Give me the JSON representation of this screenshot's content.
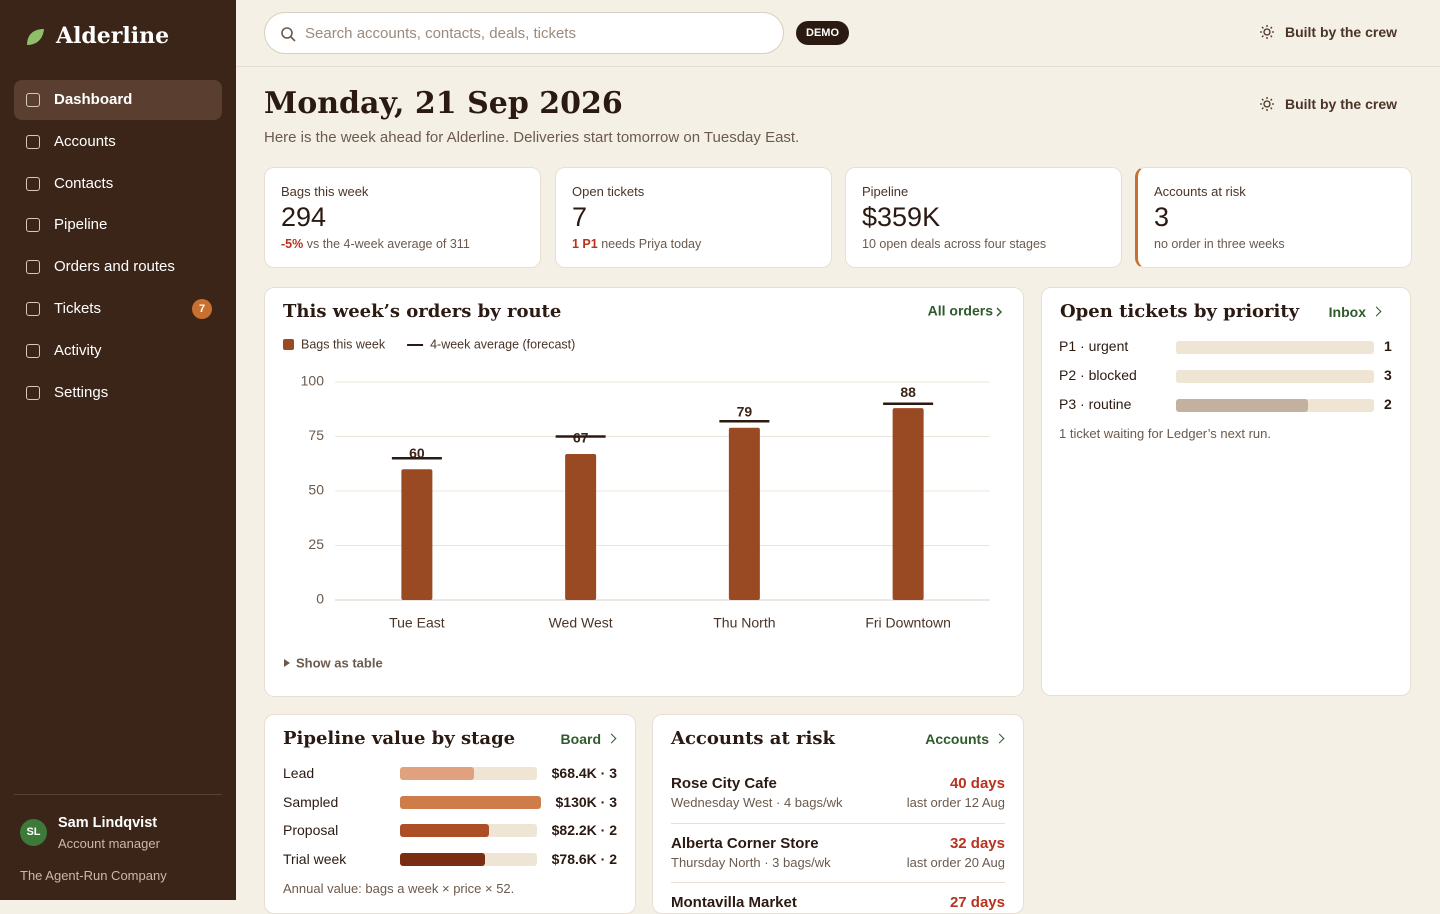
{
  "sidebar": {
    "brand": "Alderline",
    "nav": [
      {
        "label": "Dashboard"
      },
      {
        "label": "Accounts"
      },
      {
        "label": "Contacts"
      },
      {
        "label": "Pipeline"
      },
      {
        "label": "Orders and routes"
      },
      {
        "label": "Tickets",
        "badge": "7"
      },
      {
        "label": "Activity"
      },
      {
        "label": "Settings"
      }
    ],
    "user": {
      "initials": "SL",
      "name": "Sam Lindqvist",
      "role": "Account manager"
    },
    "company": "The Agent-Run Company"
  },
  "topbar": {
    "search_placeholder": "Search accounts, contacts, deals, tickets",
    "badge": "DEMO",
    "credit": "Built by the crew"
  },
  "header": {
    "title": "Monday, 21 Sep 2026",
    "subtitle": "Here is the week ahead for Alderline. Deliveries start tomorrow on Tuesday East.",
    "credit": "Built by the crew"
  },
  "kpis": [
    {
      "label": "Bags this week",
      "value": "294",
      "highlight": "-5%",
      "note": "vs the 4-week average of 311"
    },
    {
      "label": "Open tickets",
      "value": "7",
      "highlight": "1 P1",
      "note": "needs Priya today"
    },
    {
      "label": "Pipeline",
      "value": "$359K",
      "note": "10 open deals across four stages"
    },
    {
      "label": "Accounts at risk",
      "value": "3",
      "note": "no order in three weeks"
    }
  ],
  "chart_data": {
    "type": "bar",
    "title": "This week’s orders by route",
    "link": "All orders",
    "categories": [
      "Tue East",
      "Wed West",
      "Thu North",
      "Fri Downtown"
    ],
    "series": [
      {
        "name": "Bags this week",
        "color": "#9a4a22",
        "values": [
          60,
          67,
          79,
          88
        ]
      },
      {
        "name": "4-week average (forecast)",
        "color": "#2b1a12",
        "values": [
          65,
          75,
          82,
          90
        ]
      }
    ],
    "ylim": [
      0,
      100
    ],
    "yticks": [
      0,
      25,
      50,
      75,
      100
    ],
    "grid": true,
    "toggle": "Show as table"
  },
  "tickets": {
    "title": "Open tickets by priority",
    "link": "Inbox",
    "rows": [
      {
        "label": "P1 · urgent",
        "value": 1,
        "color": "#efe5d5"
      },
      {
        "label": "P2 · blocked",
        "value": 3,
        "color": "#efe5d5"
      },
      {
        "label": "P3 · routine",
        "value": 2,
        "color": "#c2b19f"
      }
    ],
    "note": "1 ticket waiting for Ledger’s next run."
  },
  "pipeline": {
    "title": "Pipeline value by stage",
    "link": "Board",
    "rows": [
      {
        "stage": "Lead",
        "value": 68400,
        "label": "$68.4K · 3",
        "color": "#dfa17e"
      },
      {
        "stage": "Sampled",
        "value": 130000,
        "label": "$130K · 3",
        "color": "#cf7c4b"
      },
      {
        "stage": "Proposal",
        "value": 82200,
        "label": "$82.2K · 2",
        "color": "#ad4f26"
      },
      {
        "stage": "Trial week",
        "value": 78600,
        "label": "$78.6K · 2",
        "color": "#7b2d14"
      }
    ],
    "note": "Annual value: bags a week × price × 52."
  },
  "accounts": {
    "title": "Accounts at risk",
    "link": "Accounts",
    "items": [
      {
        "name": "Rose City Cafe",
        "detail": "Wednesday West · 4 bags/wk",
        "days": "40 days",
        "last": "last order 12 Aug"
      },
      {
        "name": "Alberta Corner Store",
        "detail": "Thursday North · 3 bags/wk",
        "days": "32 days",
        "last": "last order 20 Aug"
      },
      {
        "name": "Montavilla Market",
        "days": "27 days"
      }
    ]
  }
}
